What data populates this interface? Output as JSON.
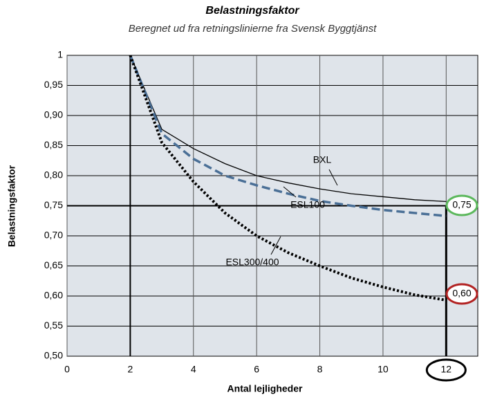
{
  "chart_data": {
    "type": "line",
    "title": "Belastningsfaktor",
    "subtitle": "Beregnet ud fra retningslinierne fra Svensk Byggtjänst",
    "x_label": "Antal lejligheder",
    "y_label": "Belastningsfaktor",
    "x": [
      2,
      3,
      4,
      5,
      6,
      7,
      8,
      9,
      10,
      11,
      12
    ],
    "series": [
      {
        "name": "BXL",
        "color": "#000000",
        "style": "solid",
        "values": [
          1.0,
          0.877,
          0.845,
          0.82,
          0.8,
          0.788,
          0.778,
          0.77,
          0.765,
          0.76,
          0.757
        ]
      },
      {
        "name": "ESL100",
        "color": "#4a6f96",
        "style": "dashed",
        "values": [
          1.0,
          0.87,
          0.828,
          0.8,
          0.784,
          0.77,
          0.758,
          0.75,
          0.743,
          0.738,
          0.733
        ]
      },
      {
        "name": "ESL300/400",
        "color": "#000000",
        "style": "dotted",
        "values": [
          1.0,
          0.855,
          0.79,
          0.738,
          0.7,
          0.672,
          0.65,
          0.63,
          0.615,
          0.602,
          0.593
        ]
      }
    ],
    "xlim": [
      0,
      13
    ],
    "ylim": [
      0.5,
      1
    ],
    "xticks": [
      0,
      2,
      4,
      6,
      8,
      10,
      12
    ],
    "yticks": [
      {
        "value": 0.5,
        "label": "0,50"
      },
      {
        "value": 0.55,
        "label": "0,55"
      },
      {
        "value": 0.6,
        "label": "0,60"
      },
      {
        "value": 0.65,
        "label": "0,65"
      },
      {
        "value": 0.7,
        "label": "0,70"
      },
      {
        "value": 0.75,
        "label": "0,75"
      },
      {
        "value": 0.8,
        "label": "0,80"
      },
      {
        "value": 0.85,
        "label": "0,85"
      },
      {
        "value": 0.9,
        "label": "0,90"
      },
      {
        "value": 0.95,
        "label": "0,95"
      },
      1
    ],
    "grid": true,
    "annotations": [
      "BXL",
      "ESL100",
      "ESL300/400",
      "0,75",
      "0,60"
    ]
  }
}
